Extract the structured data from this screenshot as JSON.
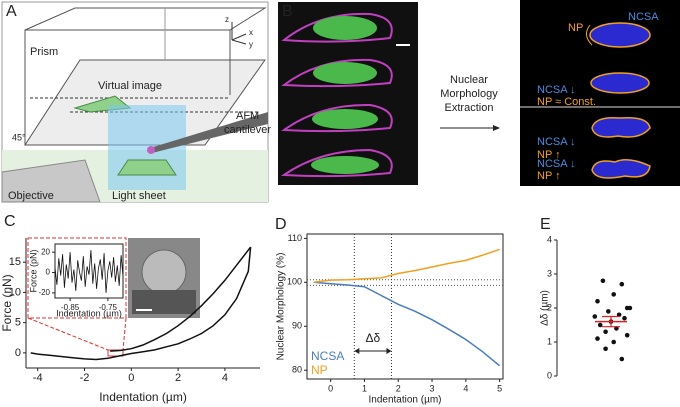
{
  "panel_labels": [
    "A",
    "B",
    "C",
    "D",
    "E"
  ],
  "panels": {
    "A": {
      "prism": "Prism",
      "virtual_image": "Virtual image",
      "cantilever": [
        "AFM",
        "cantilever"
      ],
      "angle": "45°",
      "objective": "Objective",
      "light_sheet": "Light sheet",
      "axes": [
        "z",
        "x",
        "y"
      ]
    },
    "B": {
      "process": [
        "Nuclear",
        "Morphology",
        "Extraction"
      ],
      "rows": [
        {
          "ncsa": "NCSA",
          "np": "NP"
        },
        {
          "ncsa": "NCSA ↓",
          "np": "NP ≈ Const."
        },
        {
          "ncsa": "NCSA ↓",
          "np": "NP ↑"
        },
        {
          "ncsa": "NCSA ↓",
          "np": "NP ↑"
        }
      ]
    }
  },
  "chart_data": [
    {
      "type": "line",
      "xlabel": "Indentation (µm)",
      "ylabel": "Force (nN)",
      "frame": "open",
      "xlim": [
        -4.5,
        5.5
      ],
      "xticks": [
        -4,
        -2,
        0,
        2,
        4
      ],
      "ylim": [
        -2.5,
        19
      ],
      "yticks": [
        0,
        5,
        10,
        15
      ],
      "series": [
        {
          "color": "#111111",
          "x": [
            -4.3,
            -4,
            -3.5,
            -3,
            -2.5,
            -2,
            -1.5,
            -1,
            -0.5,
            0,
            0.5,
            1,
            1.5,
            2,
            2.5,
            3,
            3.5,
            4,
            4.5,
            5,
            5.1
          ],
          "values": [
            0,
            -0.2,
            -0.4,
            -0.6,
            -0.8,
            -1,
            -1.1,
            -0.9,
            -0.5,
            -0.1,
            0.2,
            0.5,
            1,
            1.5,
            2.3,
            3.2,
            4.5,
            6.3,
            9,
            13.5,
            17.5
          ]
        },
        {
          "color": "#111111",
          "x": [
            5.1,
            4.5,
            4,
            3.5,
            3,
            2.5,
            2,
            1.5,
            1,
            0.5,
            0,
            -0.5,
            -0.9
          ],
          "values": [
            17.5,
            14.5,
            12,
            9.8,
            7.8,
            6,
            4.5,
            3.2,
            2.2,
            1.3,
            0.7,
            0.4,
            0.3
          ]
        }
      ]
    },
    {
      "type": "line",
      "xlabel": "Indentation (µm)",
      "ylabel": "Force (pN)",
      "frame": "box",
      "xlim": [
        -0.89,
        -0.71
      ],
      "xticks": [
        -0.85,
        -0.75
      ],
      "ylim": [
        -25,
        28
      ],
      "yticks": [
        -20,
        0,
        20
      ],
      "series": [
        {
          "color": "#111111",
          "x": [
            -0.89,
            -0.885,
            -0.88,
            -0.875,
            -0.87,
            -0.865,
            -0.86,
            -0.855,
            -0.85,
            -0.845,
            -0.84,
            -0.835,
            -0.83,
            -0.825,
            -0.82,
            -0.815,
            -0.81,
            -0.805,
            -0.8,
            -0.795,
            -0.79,
            -0.785,
            -0.78,
            -0.775,
            -0.77,
            -0.765,
            -0.76,
            -0.755,
            -0.75,
            -0.745,
            -0.74,
            -0.735,
            -0.73,
            -0.725,
            -0.72,
            -0.715,
            -0.71
          ],
          "values": [
            5,
            -12,
            14,
            -3,
            18,
            -15,
            8,
            -6,
            20,
            -10,
            3,
            -18,
            12,
            0,
            -8,
            16,
            -14,
            6,
            -2,
            22,
            -11,
            9,
            -16,
            4,
            13,
            -7,
            19,
            -20,
            2,
            11,
            -5,
            15,
            -9,
            7,
            -13,
            17,
            -4
          ]
        }
      ]
    },
    {
      "type": "line",
      "xlabel": "Indentation (µm)",
      "ylabel": "Nuclear Morphology (%)",
      "frame": "box",
      "xlim": [
        -0.7,
        5.1
      ],
      "xticks": [
        0,
        1,
        2,
        3,
        4,
        5
      ],
      "ylim": [
        78,
        111
      ],
      "yticks": [
        80,
        90,
        100,
        110
      ],
      "x": [
        -0.5,
        0,
        0.5,
        1,
        1.5,
        2,
        2.5,
        3,
        3.5,
        4,
        4.5,
        5
      ],
      "series": [
        {
          "name": "NCSA",
          "color": "#4a7cc0",
          "values": [
            100,
            99.7,
            99.4,
            99,
            97,
            95,
            93.4,
            91.5,
            89.3,
            87,
            84.2,
            81
          ]
        },
        {
          "name": "NP",
          "color": "#f0a020",
          "values": [
            100,
            100.5,
            100.6,
            100.8,
            101,
            102,
            102.7,
            103.5,
            104.3,
            105,
            106.2,
            107.5
          ]
        }
      ],
      "legend": "lower left",
      "hlines": [
        100.6,
        99.3
      ],
      "vlines": [
        0.7,
        1.8
      ],
      "annotation": "Δδ"
    },
    {
      "type": "scatter",
      "ylabel": "Δδ (µm)",
      "frame": "left",
      "color": "#111111",
      "xlim": [
        -1,
        1
      ],
      "ylim": [
        0,
        4
      ],
      "yticks": [
        0,
        1,
        2,
        3,
        4
      ],
      "x": [
        -0.15,
        0.2,
        0.05,
        -0.25,
        0.3,
        -0.05,
        0.15,
        -0.3,
        0.25,
        0,
        -0.2,
        0.1,
        -0.1,
        0.3,
        -0.25,
        0.05,
        -0.1,
        0.2,
        0.35
      ],
      "values": [
        2.8,
        2.7,
        2.4,
        2.2,
        2.0,
        1.9,
        1.8,
        1.75,
        1.7,
        1.6,
        1.5,
        1.4,
        1.3,
        1.2,
        1.1,
        1.0,
        0.8,
        0.5,
        2.0
      ],
      "mean": 1.6,
      "error": 0.15,
      "mean_color": "#e02020"
    }
  ]
}
